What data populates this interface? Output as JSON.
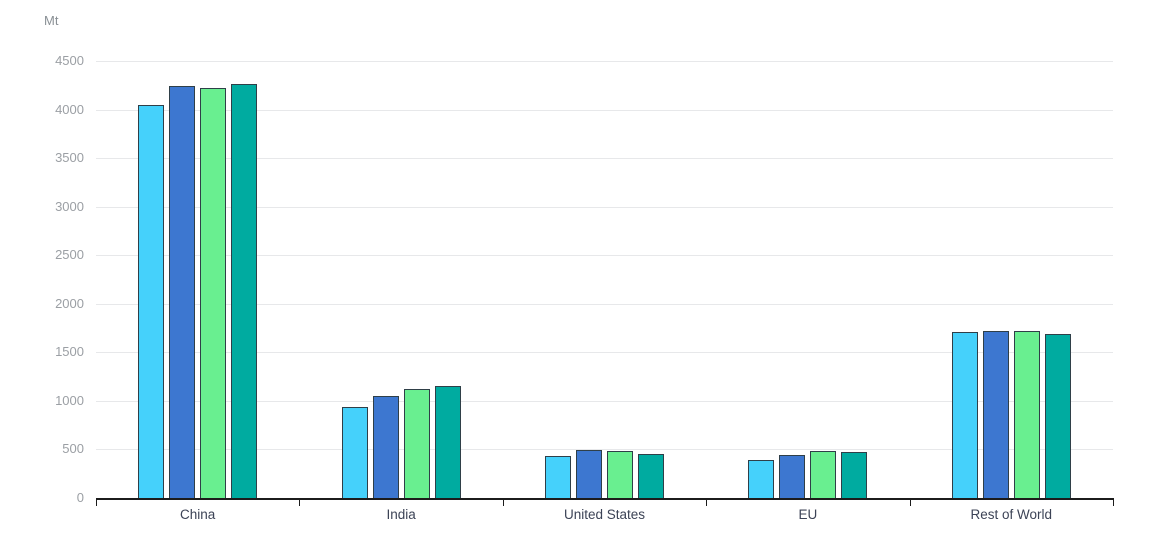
{
  "chart_data": {
    "type": "bar",
    "title": "",
    "ylabel": "Mt",
    "xlabel": "",
    "categories": [
      "China",
      "India",
      "United States",
      "EU",
      "Rest of World"
    ],
    "series": [
      {
        "name": "series-1-light-blue",
        "color": "#45d1fb",
        "values": [
          4050,
          940,
          430,
          390,
          1710
        ]
      },
      {
        "name": "series-2-blue",
        "color": "#3d77d0",
        "values": [
          4240,
          1050,
          495,
          445,
          1720
        ]
      },
      {
        "name": "series-3-green",
        "color": "#69ef90",
        "values": [
          4220,
          1120,
          480,
          485,
          1715
        ]
      },
      {
        "name": "series-4-teal",
        "color": "#00aba0",
        "values": [
          4260,
          1155,
          455,
          470,
          1685
        ]
      }
    ],
    "yticks": [
      0,
      500,
      1000,
      1500,
      2000,
      2500,
      3000,
      3500,
      4000,
      4500
    ],
    "ylim": [
      0,
      4700
    ],
    "grid": true,
    "legend": "none",
    "colors": {
      "bar_outline": "#2f3f48",
      "gridline": "#e7e8ea",
      "axis_line": "#1c1c1c",
      "y_tick_text": "#9b9fa4",
      "category_text": "#3c4356",
      "unit_text": "#8a9095",
      "background": "#ffffff"
    }
  }
}
